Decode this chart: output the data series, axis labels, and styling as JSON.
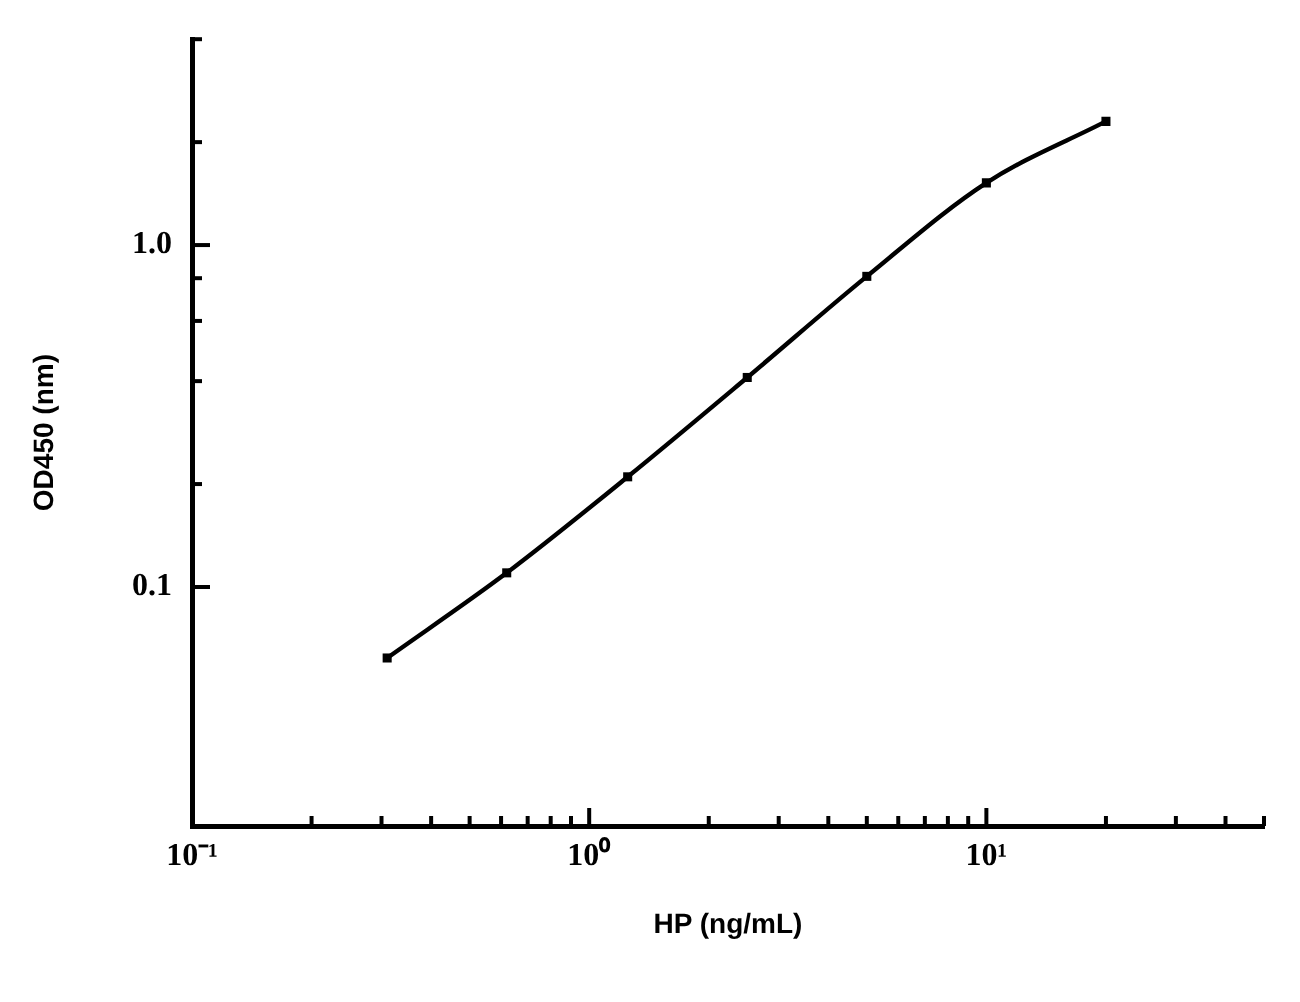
{
  "chart_data": {
    "type": "line",
    "xlabel": "HP (ng/mL)",
    "ylabel": "OD450 (nm)",
    "x": [
      0.31,
      0.62,
      1.25,
      2.5,
      5,
      10,
      20
    ],
    "series": [
      {
        "color": "#000000",
        "values": [
          0.062,
          0.11,
          0.21,
          0.41,
          0.81,
          1.52,
          2.3
        ]
      }
    ],
    "log": "xy",
    "xlim": [
      0.1,
      50
    ],
    "ylim": [
      0.02,
      4
    ],
    "xticks": [
      {
        "value": 0.1,
        "label": "10⁻¹"
      },
      {
        "value": 0.2,
        "label": null
      },
      {
        "value": 0.3,
        "label": null
      },
      {
        "value": 0.4,
        "label": null
      },
      {
        "value": 0.5,
        "label": null
      },
      {
        "value": 0.6,
        "label": null
      },
      {
        "value": 0.7,
        "label": null
      },
      {
        "value": 0.8,
        "label": null
      },
      {
        "value": 0.9,
        "label": null
      },
      {
        "value": 1,
        "label": "10⁰"
      },
      {
        "value": 2,
        "label": null
      },
      {
        "value": 3,
        "label": null
      },
      {
        "value": 4,
        "label": null
      },
      {
        "value": 5,
        "label": null
      },
      {
        "value": 6,
        "label": null
      },
      {
        "value": 7,
        "label": null
      },
      {
        "value": 8,
        "label": null
      },
      {
        "value": 9,
        "label": null
      },
      {
        "value": 10,
        "label": "10¹"
      },
      {
        "value": 20,
        "label": null
      },
      {
        "value": 30,
        "label": null
      },
      {
        "value": 40,
        "label": null
      },
      {
        "value": 50,
        "label": null
      }
    ],
    "yticks": [
      0.1,
      {
        "value": 0.2,
        "label": null
      },
      {
        "value": 0.4,
        "label": null
      },
      {
        "value": 0.6,
        "label": null
      },
      {
        "value": 0.8,
        "label": null
      },
      {
        "value": 1,
        "label": "1.0"
      },
      {
        "value": 2,
        "label": null
      },
      {
        "value": 4,
        "label": null
      }
    ],
    "marker": "square",
    "line_style": "solid"
  }
}
